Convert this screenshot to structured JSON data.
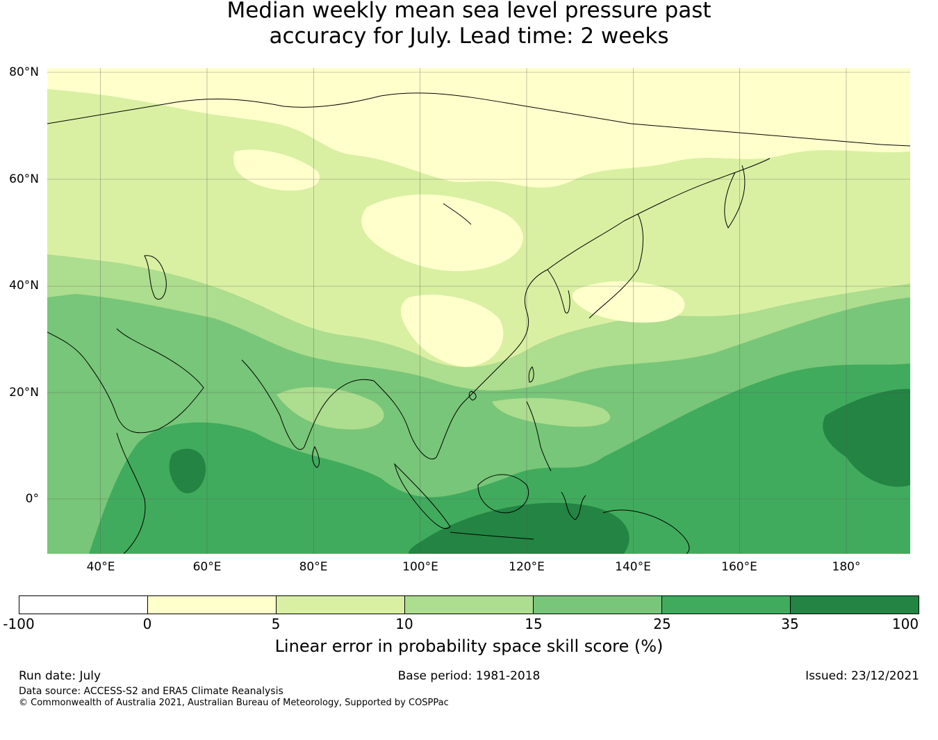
{
  "title": {
    "line1": "Median weekly mean sea level pressure past",
    "line2": "accuracy for July. Lead time: 2 weeks"
  },
  "map": {
    "lat_labels": [
      "80°N",
      "60°N",
      "40°N",
      "20°N",
      "0°"
    ],
    "lon_labels": [
      "40°E",
      "60°E",
      "80°E",
      "100°E",
      "120°E",
      "140°E",
      "160°E",
      "180°"
    ],
    "extent": {
      "lon_min": 30,
      "lon_max": 192,
      "lat_min": -10,
      "lat_max": 80
    }
  },
  "colorbar": {
    "ticks": [
      "-100",
      "0",
      "5",
      "10",
      "15",
      "25",
      "35",
      "100"
    ],
    "colors": [
      "#ffffff",
      "#ffffcc",
      "#d9f0a3",
      "#addd8e",
      "#78c679",
      "#41ab5d",
      "#238443"
    ],
    "label": "Linear error in probability space skill score (%)"
  },
  "footer": {
    "run_date": "Run date: July",
    "base_period": "Base period: 1981-2018",
    "issued": "Issued: 23/12/2021",
    "data_source": "Data source: ACCESS-S2 and ERA5 Climate Reanalysis",
    "copyright": "© Commonwealth of Australia 2021, Australian Bureau of Meteorology, Supported by COSPPac"
  }
}
